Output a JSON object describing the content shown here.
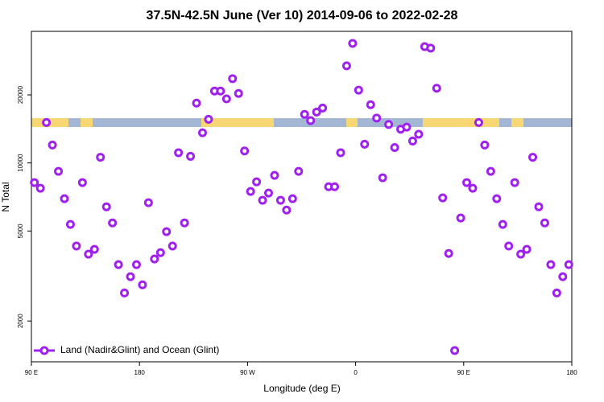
{
  "chart_data": {
    "type": "scatter",
    "title": "37.5N-42.5N June (Ver 10)   2014-09-06 to 2022-02-28",
    "x_label": "Longitude (deg E)",
    "y_label": "N Total",
    "log_y": true,
    "legend_position": "lower-left",
    "xlim": [
      90,
      540
    ],
    "xticks": [
      {
        "value": 90,
        "label": "90 E"
      },
      {
        "value": 180,
        "label": "180"
      },
      {
        "value": 270,
        "label": "90 W"
      },
      {
        "value": 360,
        "label": "0"
      },
      {
        "value": 450,
        "label": "90 E"
      },
      {
        "value": 540,
        "label": "180"
      }
    ],
    "ylim": [
      1320,
      38200
    ],
    "yticks": [
      2000,
      5000,
      10000,
      20000
    ],
    "series": [
      {
        "name": "Land (Nadir&Glint) and Ocean (Glint)",
        "color": "#a020f0",
        "x": [
          92.5,
          97.5,
          102.5,
          107.5,
          112.5,
          117.5,
          122.5,
          127.5,
          132.5,
          137.5,
          142.5,
          147.5,
          152.5,
          157.5,
          162.5,
          167.5,
          172.5,
          177.5,
          182.5,
          187.5,
          192.5,
          197.5,
          202.5,
          207.5,
          212.5,
          217.5,
          222.5,
          227.5,
          232.5,
          237.5,
          242.5,
          247.5,
          252.5,
          257.5,
          262.5,
          267.5,
          272.5,
          277.5,
          282.5,
          287.5,
          292.5,
          297.5,
          302.5,
          307.5,
          312.5,
          317.5,
          322.5,
          327.5,
          332.5,
          337.5,
          342.5,
          347.5,
          352.5,
          357.5,
          362.5,
          367.5,
          372.5,
          377.5,
          382.5,
          387.5,
          392.5,
          397.5,
          402.5,
          407.5,
          412.5,
          417.5,
          422.5,
          427.5,
          432.5,
          437.5,
          442.5,
          447.5,
          452.5,
          457.5,
          462.5,
          467.5,
          472.5,
          477.5,
          482.5,
          487.5,
          492.5,
          497.5,
          502.5,
          507.5,
          512.5,
          517.5,
          522.5,
          527.5,
          532.5,
          537.5
        ],
        "values": [
          8190,
          7730,
          15100,
          12000,
          9180,
          6950,
          5350,
          4290,
          8190,
          3950,
          4150,
          10600,
          6400,
          5430,
          3550,
          2660,
          3140,
          3550,
          2890,
          6670,
          3760,
          4010,
          4970,
          4290,
          11100,
          5430,
          10700,
          18400,
          13600,
          15600,
          20800,
          20800,
          19200,
          23600,
          20300,
          11300,
          7480,
          8250,
          6840,
          7360,
          8810,
          6840,
          6190,
          6950,
          9180,
          16400,
          15400,
          16800,
          17500,
          7850,
          7850,
          11100,
          26900,
          33800,
          21000,
          12100,
          18100,
          15800,
          8600,
          14800,
          11700,
          14100,
          14400,
          12500,
          13400,
          32700,
          32200,
          21400,
          7010,
          3980,
          1480,
          5710,
          8190,
          7730,
          15100,
          12000,
          9180,
          6950,
          5350,
          4290,
          8190,
          3950,
          4150,
          10600,
          6400,
          5430,
          3550,
          2660,
          3140,
          3550
        ]
      }
    ]
  }
}
